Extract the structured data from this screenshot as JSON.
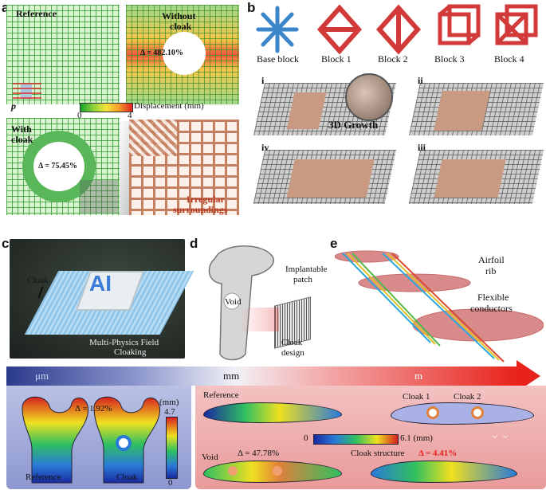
{
  "panel_a": {
    "letter": "a",
    "reference_label": "Reference",
    "without_cloak_label": [
      "Without",
      "cloak"
    ],
    "without_delta": "Δ = 482.10%",
    "p_label": "p",
    "colorbar_label": "Displacement (mm)",
    "colorbar_min": "0",
    "colorbar_max": "4",
    "with_cloak_label": [
      "With",
      "cloak"
    ],
    "with_delta": "Δ = 75.45%",
    "irregular_label": [
      "Irregular",
      "surroundings"
    ]
  },
  "panel_b": {
    "letter": "b",
    "blocks": [
      "Base block",
      "Block 1",
      "Block 2",
      "Block 3",
      "Block 4"
    ],
    "stage_labels": [
      "i",
      "ii",
      "iv",
      "iii"
    ],
    "growth_label": "3D Growth"
  },
  "panel_c": {
    "letter": "c",
    "cloak_label": "Cloak",
    "chip_text": "AI",
    "caption": [
      "Multi-Physics Field",
      "Cloaking"
    ]
  },
  "panel_d": {
    "letter": "d",
    "patch_label": [
      "Implantable",
      "patch"
    ],
    "void_label": "Void",
    "cloak_design_label": [
      "Cloak",
      "design"
    ]
  },
  "panel_e": {
    "letter": "e",
    "airfoil_label": [
      "Airfoil",
      "rib"
    ],
    "conductor_label": [
      "Flexible",
      "conductors"
    ]
  },
  "scale_bar": {
    "labels": [
      "μm",
      "mm",
      "m"
    ]
  },
  "bottom_left": {
    "delta": "Δ = 1.92%",
    "unit": "(mm)",
    "max": "4.7",
    "min": "0",
    "reference": "Reference",
    "cloak": "Cloak"
  },
  "bottom_right": {
    "reference": "Reference",
    "cloak1": "Cloak 1",
    "cloak2": "Cloak 2",
    "colorbar_min": "0",
    "colorbar_max": "6.1 (mm)",
    "void": "Void",
    "void_delta": "Δ = 47.78%",
    "cloak_structure": "Cloak structure",
    "cloak_delta": "Δ = 4.41%"
  },
  "colors": {
    "accent_red": "#e8231c",
    "grid_green": "#2f9a2f",
    "brown": "#c58062",
    "block_red": "#d23a3a",
    "block_blue": "#3a86c8"
  }
}
